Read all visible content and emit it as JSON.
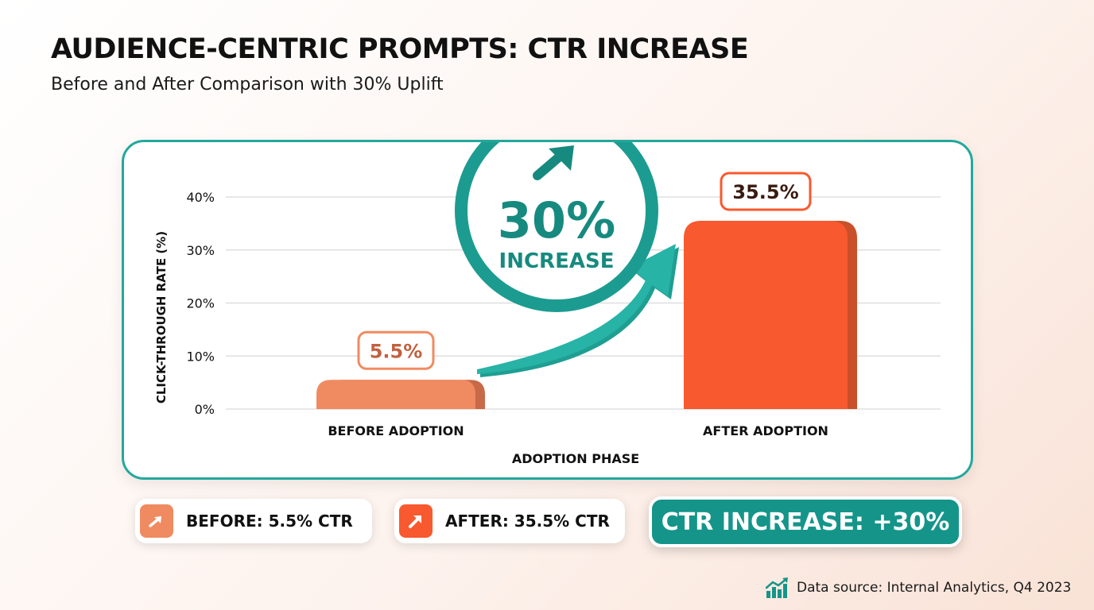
{
  "header": {
    "title": "AUDIENCE-CENTRIC PROMPTS: CTR INCREASE",
    "subtitle": "Before and After Comparison with 30% Uplift"
  },
  "chart_data": {
    "type": "bar",
    "categories": [
      "BEFORE ADOPTION",
      "AFTER ADOPTION"
    ],
    "values": [
      5.5,
      35.5
    ],
    "data_labels": [
      "5.5%",
      "35.5%"
    ],
    "ylabel": "CLICK-THROUGH RATE (%)",
    "xlabel": "ADOPTION PHASE",
    "ylim": [
      0,
      40
    ],
    "yticks": [
      0,
      10,
      20,
      30,
      40
    ],
    "ytick_labels": [
      "0%",
      "10%",
      "20%",
      "30%",
      "40%"
    ],
    "grid": true,
    "bar_colors": [
      "#f08a60",
      "#f8592e"
    ],
    "callout": {
      "value": "30%",
      "label": "INCREASE"
    }
  },
  "legend": {
    "before": {
      "label": "BEFORE: 5.5% CTR",
      "color": "#f08a60",
      "icon": "arrow-up-right-icon"
    },
    "after": {
      "label": "AFTER: 35.5% CTR",
      "color": "#f8592e",
      "icon": "arrow-up-right-icon"
    }
  },
  "summary": {
    "label": "CTR INCREASE: +30%",
    "color": "#15958a"
  },
  "footer": {
    "source": "Data source: Internal Analytics, Q4 2023",
    "icon": "bar-chart-growth-icon"
  },
  "colors": {
    "accent": "#23a89c",
    "accent_dark": "#15958a"
  }
}
